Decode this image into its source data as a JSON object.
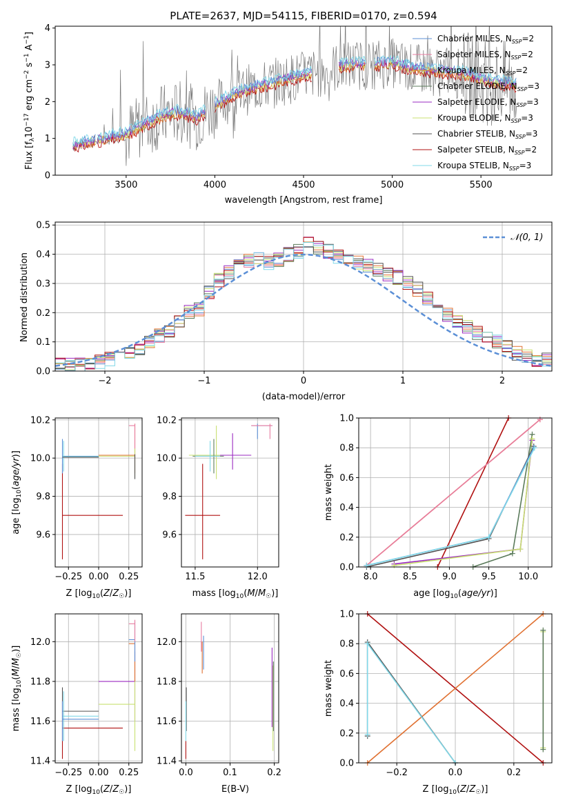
{
  "colors": {
    "chabrier_miles": "#5b8fd6",
    "salpeter_miles": "#e87ca0",
    "kroupa_miles": "#e0a020",
    "chabrier_elodie": "#5a7a5a",
    "salpeter_elodie": "#9a28c0",
    "kroupa_elodie": "#c8e070",
    "chabrier_stelib": "#505050",
    "salpeter_stelib": "#b01010",
    "kroupa_stelib": "#80d8e8",
    "orange": "#e07030",
    "gauss": "#5b8fd6",
    "grid": "#b0b0b0"
  },
  "chart_data": [
    {
      "type": "line",
      "title": "PLATE=2637, MJD=54115, FIBERID=0170, z=0.594",
      "xlabel": "wavelength [Angstrom, rest frame]",
      "ylabel": "Flux [f_λ 10^-17 erg cm^-2 s^-1 A^-1]",
      "xlim": [
        3100,
        5900
      ],
      "ylim": [
        0,
        4.05
      ],
      "xticks": [
        "3500",
        "4000",
        "4500",
        "5000",
        "5500"
      ],
      "yticks": [
        "0",
        "1",
        "2",
        "3",
        "4"
      ],
      "grid": false,
      "legend": "right",
      "legend_entries": [
        "Chabrier MILES, N_SSP=2",
        "Salpeter MILES, N_SSP=2",
        "Kroupa MILES, N_SSP=2",
        "Chabrier ELODIE, N_SSP=3",
        "Salpeter ELODIE, N_SSP=3",
        "Kroupa ELODIE, N_SSP=3",
        "Chabrier STELIB, N_SSP=3",
        "Salpeter STELIB, N_SSP=2",
        "Kroupa STELIB, N_SSP=3"
      ],
      "continuum": {
        "x": [
          3200,
          3300,
          3400,
          3500,
          3600,
          3700,
          3800,
          3900,
          4000,
          4100,
          4200,
          4300,
          4400,
          4500,
          4600,
          4700,
          4800,
          4900,
          5000,
          5100,
          5200,
          5300,
          5400,
          5500,
          5600,
          5700
        ],
        "y": [
          0.8,
          0.9,
          1.0,
          1.1,
          1.35,
          1.6,
          1.7,
          1.55,
          1.9,
          2.15,
          2.35,
          2.45,
          2.6,
          2.7,
          2.8,
          2.95,
          3.0,
          3.0,
          3.05,
          2.9,
          2.85,
          2.8,
          2.75,
          2.6,
          2.5,
          2.45
        ]
      }
    },
    {
      "type": "step",
      "xlabel": "(data-model)/error",
      "ylabel": "Normed distribution",
      "xlim": [
        -2.5,
        2.5
      ],
      "ylim": [
        0,
        0.51
      ],
      "xticks": [
        "−2",
        "−1",
        "0",
        "1",
        "2"
      ],
      "yticks": [
        "0.0",
        "0.1",
        "0.2",
        "0.3",
        "0.4",
        "0.5"
      ],
      "grid": true,
      "legend": "top-right",
      "legend_label": "𝒩(0, 1)",
      "bins": [
        -2.5,
        -2.4,
        -2.3,
        -2.2,
        -2.1,
        -2.0,
        -1.9,
        -1.8,
        -1.7,
        -1.6,
        -1.5,
        -1.4,
        -1.3,
        -1.2,
        -1.1,
        -1.0,
        -0.9,
        -0.8,
        -0.7,
        -0.6,
        -0.5,
        -0.4,
        -0.3,
        -0.2,
        -0.1,
        0.0,
        0.1,
        0.2,
        0.3,
        0.4,
        0.5,
        0.6,
        0.7,
        0.8,
        0.9,
        1.0,
        1.1,
        1.2,
        1.3,
        1.4,
        1.5,
        1.6,
        1.7,
        1.8,
        1.9,
        2.0,
        2.1,
        2.2,
        2.3,
        2.4,
        2.5
      ],
      "hist_base": [
        0.02,
        0.02,
        0.02,
        0.03,
        0.03,
        0.04,
        0.05,
        0.06,
        0.08,
        0.1,
        0.12,
        0.14,
        0.17,
        0.2,
        0.21,
        0.27,
        0.31,
        0.34,
        0.36,
        0.38,
        0.39,
        0.37,
        0.38,
        0.4,
        0.41,
        0.44,
        0.42,
        0.41,
        0.39,
        0.38,
        0.37,
        0.36,
        0.35,
        0.33,
        0.32,
        0.3,
        0.28,
        0.25,
        0.22,
        0.19,
        0.17,
        0.15,
        0.13,
        0.12,
        0.1,
        0.08,
        0.06,
        0.05,
        0.04,
        0.04
      ]
    },
    {
      "type": "scatter",
      "xlabel": "Z [log10(Z/Z☉)]",
      "ylabel": "age  [log10(age/yr)]",
      "xlim": [
        -0.36,
        0.36
      ],
      "ylim": [
        9.43,
        10.21
      ],
      "xticks": [
        "−0.25",
        "0.00",
        "0.25"
      ],
      "yticks": [
        "9.6",
        "9.8",
        "10.0",
        "10.2"
      ],
      "grid": true
    },
    {
      "type": "scatter",
      "xlabel": "mass [log10(M/M☉)]",
      "ylabel": "",
      "xlim": [
        11.39,
        12.17
      ],
      "ylim": [
        9.43,
        10.21
      ],
      "xticks": [
        "11.5",
        "12.0"
      ],
      "yticks": [
        "9.6",
        "9.8",
        "10.0",
        "10.2"
      ],
      "grid": true
    },
    {
      "type": "line",
      "xlabel": "age  [log10(age/yr)]",
      "ylabel": "mass weight",
      "xlim": [
        7.85,
        10.3
      ],
      "ylim": [
        0,
        1.0
      ],
      "xticks": [
        "8.0",
        "8.5",
        "9.0",
        "9.5",
        "10.0"
      ],
      "yticks": [
        "0.0",
        "0.2",
        "0.4",
        "0.6",
        "0.8",
        "1.0"
      ],
      "grid": true,
      "series": [
        {
          "color": "salpeter_stelib",
          "x": [
            8.85,
            9.75
          ],
          "y": [
            0.0,
            1.0
          ]
        },
        {
          "color": "orange",
          "x": [
            7.95,
            10.15
          ],
          "y": [
            0.01,
            0.99
          ]
        },
        {
          "color": "salpeter_miles",
          "x": [
            7.95,
            10.15
          ],
          "y": [
            0.01,
            0.99
          ]
        },
        {
          "color": "chabrier_elodie",
          "x": [
            9.3,
            9.8,
            10.05
          ],
          "y": [
            0.0,
            0.09,
            0.89
          ]
        },
        {
          "color": "salpeter_elodie",
          "x": [
            8.3,
            9.9,
            10.05
          ],
          "y": [
            0.02,
            0.12,
            0.85
          ]
        },
        {
          "color": "kroupa_elodie",
          "x": [
            8.3,
            9.9,
            10.05
          ],
          "y": [
            0.01,
            0.12,
            0.86
          ]
        },
        {
          "color": "chabrier_stelib",
          "x": [
            7.95,
            9.5,
            10.07
          ],
          "y": [
            0.0,
            0.19,
            0.81
          ]
        },
        {
          "color": "chabrier_miles",
          "x": [
            7.95,
            9.5,
            10.07
          ],
          "y": [
            0.01,
            0.2,
            0.8
          ]
        },
        {
          "color": "kroupa_stelib",
          "x": [
            7.95,
            9.5,
            10.08
          ],
          "y": [
            0.01,
            0.2,
            0.8
          ]
        }
      ]
    },
    {
      "type": "scatter",
      "xlabel": "Z [log10(Z/Z☉)]",
      "ylabel": "mass [log10(M/M☉)]",
      "xlim": [
        -0.36,
        0.36
      ],
      "ylim": [
        11.39,
        12.14
      ],
      "xticks": [
        "−0.25",
        "0.00",
        "0.25"
      ],
      "yticks": [
        "11.4",
        "11.6",
        "11.8",
        "12.0"
      ],
      "grid": true
    },
    {
      "type": "scatter",
      "xlabel": "E(B-V)",
      "ylabel": "",
      "xlim": [
        -0.01,
        0.21
      ],
      "ylim": [
        11.39,
        12.14
      ],
      "xticks": [
        "0.0",
        "0.1",
        "0.2"
      ],
      "yticks": [
        "11.4",
        "11.6",
        "11.8",
        "12.0"
      ],
      "grid": true
    },
    {
      "type": "line",
      "xlabel": "Z [log10(Z/Z☉)]",
      "ylabel": "mass weight",
      "xlim": [
        -0.33,
        0.33
      ],
      "ylim": [
        0,
        1.0
      ],
      "xticks": [
        "−0.2",
        "0.0",
        "0.2"
      ],
      "yticks": [
        "0.0",
        "0.2",
        "0.4",
        "0.6",
        "0.8",
        "1.0"
      ],
      "grid": true,
      "series": [
        {
          "color": "salpeter_stelib",
          "x": [
            -0.3,
            0.3
          ],
          "y": [
            1.0,
            0.0
          ]
        },
        {
          "color": "orange",
          "x": [
            -0.3,
            0.3
          ],
          "y": [
            0.0,
            1.0
          ]
        },
        {
          "color": "chabrier_stelib",
          "x": [
            -0.3,
            -0.3,
            0.0
          ],
          "y": [
            0.18,
            0.81,
            0.0
          ]
        },
        {
          "color": "kroupa_stelib",
          "x": [
            -0.3,
            -0.3,
            0.0
          ],
          "y": [
            0.19,
            0.8,
            0.0
          ]
        },
        {
          "color": "kroupa_elodie",
          "x": [
            0.3,
            0.3
          ],
          "y": [
            0.1,
            0.88
          ]
        },
        {
          "color": "chabrier_elodie",
          "x": [
            0.3,
            0.3
          ],
          "y": [
            0.09,
            0.89
          ]
        }
      ]
    }
  ]
}
